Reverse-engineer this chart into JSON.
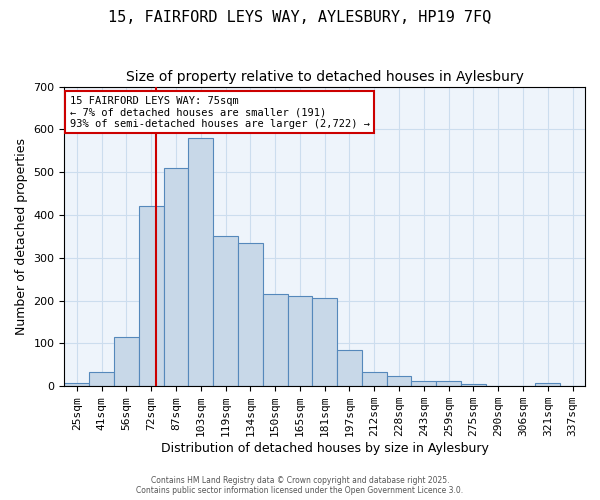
{
  "title": "15, FAIRFORD LEYS WAY, AYLESBURY, HP19 7FQ",
  "subtitle": "Size of property relative to detached houses in Aylesbury",
  "xlabel": "Distribution of detached houses by size in Aylesbury",
  "ylabel": "Number of detached properties",
  "bar_labels": [
    "25sqm",
    "41sqm",
    "56sqm",
    "72sqm",
    "87sqm",
    "103sqm",
    "119sqm",
    "134sqm",
    "150sqm",
    "165sqm",
    "181sqm",
    "197sqm",
    "212sqm",
    "228sqm",
    "243sqm",
    "259sqm",
    "275sqm",
    "290sqm",
    "306sqm",
    "321sqm",
    "337sqm"
  ],
  "bar_values": [
    8,
    33,
    115,
    420,
    510,
    580,
    350,
    335,
    215,
    210,
    205,
    85,
    33,
    25,
    12,
    12,
    5,
    0,
    0,
    7,
    0
  ],
  "bar_color": "#c8d8e8",
  "bar_edge_color": "#5588bb",
  "grid_color": "#ccddee",
  "background_color": "#eef4fb",
  "vline_color": "#cc0000",
  "annotation_text": "15 FAIRFORD LEYS WAY: 75sqm\n← 7% of detached houses are smaller (191)\n93% of semi-detached houses are larger (2,722) →",
  "annotation_box_color": "#ffffff",
  "annotation_box_edge": "#cc0000",
  "ylim": [
    0,
    700
  ],
  "yticks": [
    0,
    100,
    200,
    300,
    400,
    500,
    600,
    700
  ],
  "title_fontsize": 11,
  "subtitle_fontsize": 10,
  "xlabel_fontsize": 9,
  "ylabel_fontsize": 9,
  "tick_fontsize": 8,
  "footer_text": "Contains HM Land Registry data © Crown copyright and database right 2025.\nContains public sector information licensed under the Open Government Licence 3.0."
}
